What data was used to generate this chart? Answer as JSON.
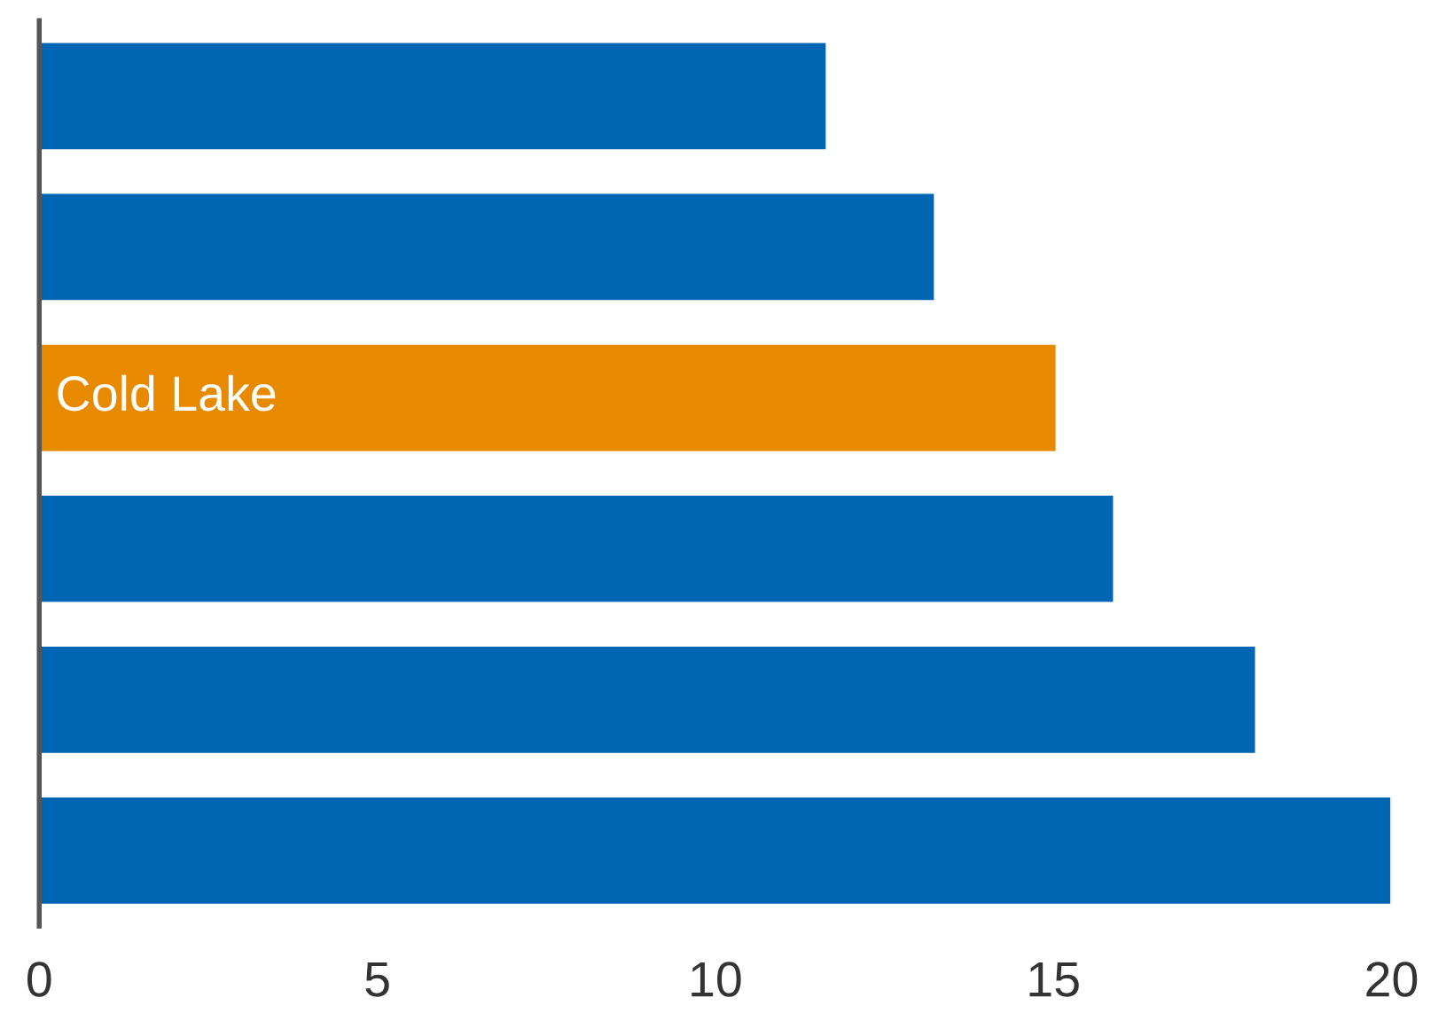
{
  "chart_data": {
    "type": "bar",
    "orientation": "horizontal",
    "categories": [
      null,
      null,
      "Cold Lake",
      null,
      null,
      null
    ],
    "values": [
      11.65,
      13.25,
      15.05,
      15.9,
      18.0,
      20.0
    ],
    "colors": [
      "#0066b3",
      "#0066b3",
      "#e88a00",
      "#0066b3",
      "#0066b3",
      "#0066b3"
    ],
    "xlim": [
      0,
      20
    ],
    "xticks": [
      0,
      5,
      10,
      15,
      20
    ],
    "tick_labels": "x",
    "grid": false,
    "legend": false
  }
}
